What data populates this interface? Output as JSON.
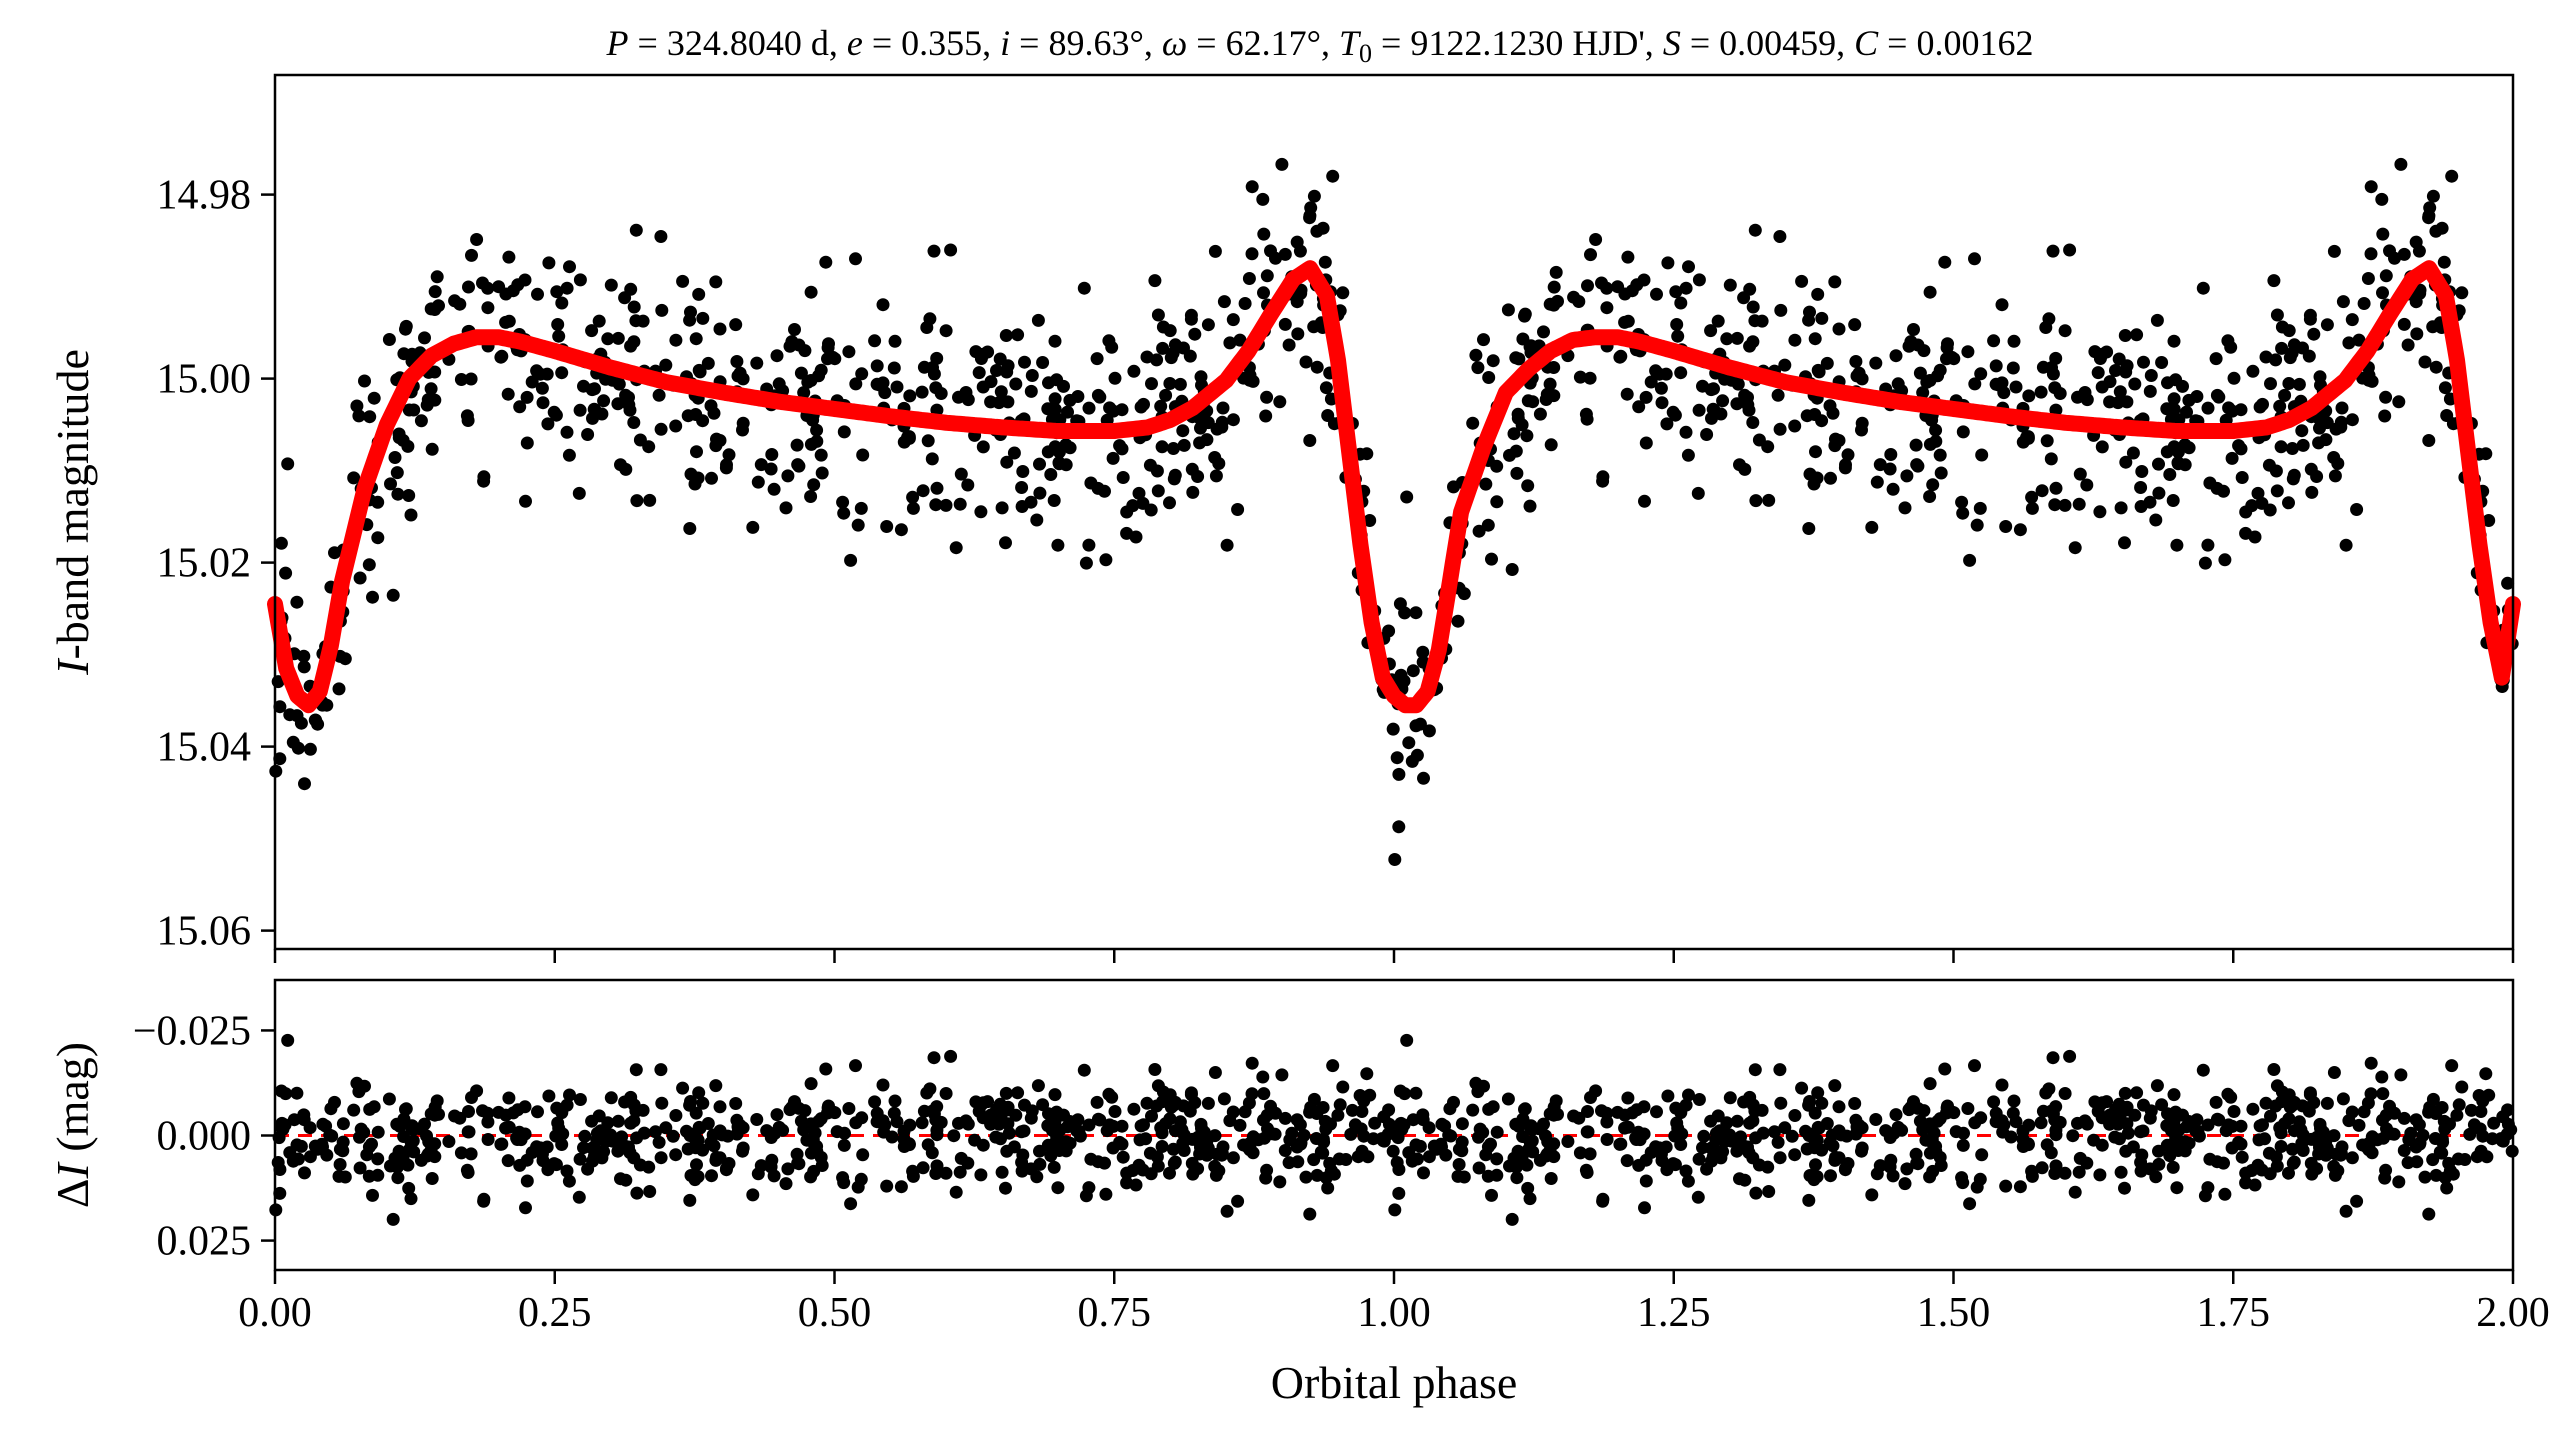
{
  "chart_data": [
    {
      "type": "scatter",
      "panel": "top",
      "title": "P = 324.8040 d, e = 0.355, i = 89.63°, ω = 62.17°, T0 = 9122.1230 HJD', S = 0.00459, C = 0.00162",
      "title_parts": {
        "P_var": "P",
        "P_val": " = 324.8040 d, ",
        "e_var": "e",
        "e_val": " = 0.355, ",
        "i_var": "i",
        "i_val": " = 89.63°, ",
        "w_var": "ω",
        "w_val": " = 62.17°, ",
        "T_var": "T",
        "T_sub": "0",
        "T_val": " = 9122.1230 HJD', ",
        "S_var": "S",
        "S_val": " = 0.00459, ",
        "C_var": "C",
        "C_val": " = 0.00162"
      },
      "xlabel": "",
      "ylabel": "I-band magnitude",
      "ylabel_parts": {
        "italic": "I",
        "rest": "-band magnitude"
      },
      "xlim": [
        0.0,
        2.0
      ],
      "ylim": [
        15.062,
        14.967
      ],
      "y_inverted": true,
      "yticks": [
        14.98,
        15.0,
        15.02,
        15.04,
        15.06
      ],
      "ytick_labels": [
        "14.98",
        "15.00",
        "15.02",
        "15.04",
        "15.06"
      ],
      "xticks": [
        0.0,
        0.25,
        0.5,
        0.75,
        1.0,
        1.25,
        1.5,
        1.75,
        2.0
      ],
      "grid": false,
      "point_color": "#000000",
      "model_color": "#ff0000",
      "model_curve": {
        "x": [
          0.0,
          0.01,
          0.02,
          0.03,
          0.04,
          0.05,
          0.06,
          0.08,
          0.1,
          0.12,
          0.14,
          0.16,
          0.18,
          0.2,
          0.22,
          0.25,
          0.3,
          0.35,
          0.4,
          0.45,
          0.5,
          0.55,
          0.6,
          0.65,
          0.7,
          0.75,
          0.78,
          0.8,
          0.82,
          0.85,
          0.87,
          0.89,
          0.91,
          0.925,
          0.94,
          0.95,
          0.96,
          0.97,
          0.98,
          0.99,
          1.0,
          1.01,
          1.02,
          1.03,
          1.04,
          1.05,
          1.06,
          1.08,
          1.1,
          1.12,
          1.14,
          1.16,
          1.18,
          1.2,
          1.22,
          1.25,
          1.3,
          1.35,
          1.4,
          1.45,
          1.5,
          1.55,
          1.6,
          1.65,
          1.7,
          1.75,
          1.78,
          1.8,
          1.82,
          1.85,
          1.87,
          1.89,
          1.91,
          1.925,
          1.94,
          1.95,
          1.96,
          1.97,
          1.98,
          1.99,
          2.0
        ],
        "y": [
          15.0245,
          15.0315,
          15.0345,
          15.0355,
          15.034,
          15.029,
          15.022,
          15.012,
          15.005,
          15.0,
          14.9975,
          14.9962,
          14.9955,
          14.9955,
          14.996,
          14.997,
          14.9988,
          15.0004,
          15.0015,
          15.0025,
          15.0033,
          15.0041,
          15.0048,
          15.0053,
          15.0057,
          15.0057,
          15.0053,
          15.0045,
          15.0032,
          15.0002,
          14.997,
          14.993,
          14.9892,
          14.988,
          14.991,
          14.998,
          15.008,
          15.018,
          15.0265,
          15.0325,
          15.0345,
          15.0355,
          15.0355,
          15.034,
          15.0295,
          15.022,
          15.0145,
          15.0075,
          15.0015,
          14.999,
          14.997,
          14.9958,
          14.9955,
          14.9955,
          14.996,
          14.997,
          14.9988,
          15.0004,
          15.0015,
          15.0025,
          15.0033,
          15.0041,
          15.0048,
          15.0053,
          15.0057,
          15.0057,
          15.0053,
          15.0045,
          15.0032,
          15.0002,
          14.997,
          14.993,
          14.9892,
          14.988,
          14.991,
          14.998,
          15.008,
          15.018,
          15.0265,
          15.0325,
          15.0245
        ]
      },
      "n_points_per_cycle": 640,
      "scatter_sigma": 0.0065
    },
    {
      "type": "scatter",
      "panel": "bottom",
      "xlabel": "Orbital phase",
      "ylabel": "ΔI (mag)",
      "ylabel_parts": {
        "delta": "Δ",
        "italic": "I",
        "rest": " (mag)"
      },
      "xlim": [
        0.0,
        2.0
      ],
      "ylim": [
        0.032,
        -0.037
      ],
      "y_inverted": true,
      "yticks": [
        -0.025,
        0.0,
        0.025
      ],
      "ytick_labels": [
        "−0.025",
        "0.000",
        "0.025"
      ],
      "xticks": [
        0.0,
        0.25,
        0.5,
        0.75,
        1.0,
        1.25,
        1.5,
        1.75,
        2.0
      ],
      "xtick_labels": [
        "0.00",
        "0.25",
        "0.50",
        "0.75",
        "1.00",
        "1.25",
        "1.50",
        "1.75",
        "2.00"
      ],
      "zero_line": {
        "y": 0.0,
        "color": "#ff0000",
        "style": "dashed"
      },
      "point_color": "#000000",
      "grid": false
    }
  ]
}
